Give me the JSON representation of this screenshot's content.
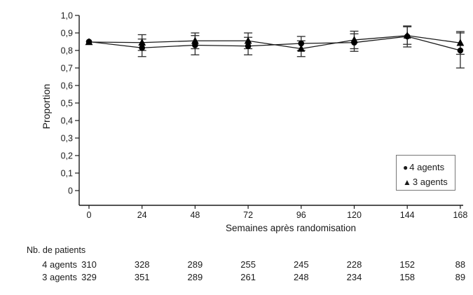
{
  "chart_data": {
    "type": "line",
    "title": "",
    "xlabel": "Semaines après randomisation",
    "ylabel": "Proportion",
    "x": [
      0,
      24,
      48,
      72,
      96,
      120,
      144,
      168
    ],
    "x_tick_labels": [
      "0",
      "24",
      "48",
      "72",
      "96",
      "120",
      "144",
      "168"
    ],
    "y_tick_labels": [
      "0",
      "0,1",
      "0,2",
      "0,3",
      "0,4",
      "0,5",
      "0,6",
      "0,7",
      "0,8",
      "0,9",
      "1,0"
    ],
    "ylim": [
      0,
      1.0
    ],
    "grid": false,
    "legend_position": "bottom-right",
    "series": [
      {
        "name": "4 agents",
        "marker": "filled-circle",
        "values": [
          0.85,
          0.815,
          0.83,
          0.825,
          0.84,
          0.845,
          0.88,
          0.8
        ],
        "errors": [
          0,
          0.05,
          0.055,
          0.05,
          0.04,
          0.05,
          0.06,
          0.1
        ]
      },
      {
        "name": "3 agents",
        "marker": "filled-triangle",
        "values": [
          0.848,
          0.845,
          0.855,
          0.855,
          0.81,
          0.86,
          0.885,
          0.843
        ],
        "errors": [
          0,
          0.045,
          0.045,
          0.045,
          0.045,
          0.05,
          0.05,
          0.065
        ]
      }
    ]
  },
  "legend": {
    "items": [
      {
        "icon": "filled-circle",
        "label": "4 agents"
      },
      {
        "icon": "filled-triangle",
        "label": "3 agents"
      }
    ]
  },
  "table": {
    "header": "Nb. de patients",
    "rows": [
      {
        "label": "4 agents",
        "values": [
          "310",
          "328",
          "289",
          "255",
          "245",
          "228",
          "152",
          "88"
        ]
      },
      {
        "label": "3 agents",
        "values": [
          "329",
          "351",
          "289",
          "261",
          "248",
          "234",
          "158",
          "89"
        ]
      }
    ]
  },
  "colors": {
    "axis": "#1a1a1a",
    "line": "#1a1a1a",
    "marker": "#000000",
    "error_bar": "#2b2b2b",
    "text": "#1a1a1a",
    "legend_border": "#777777",
    "background": "#ffffff"
  }
}
